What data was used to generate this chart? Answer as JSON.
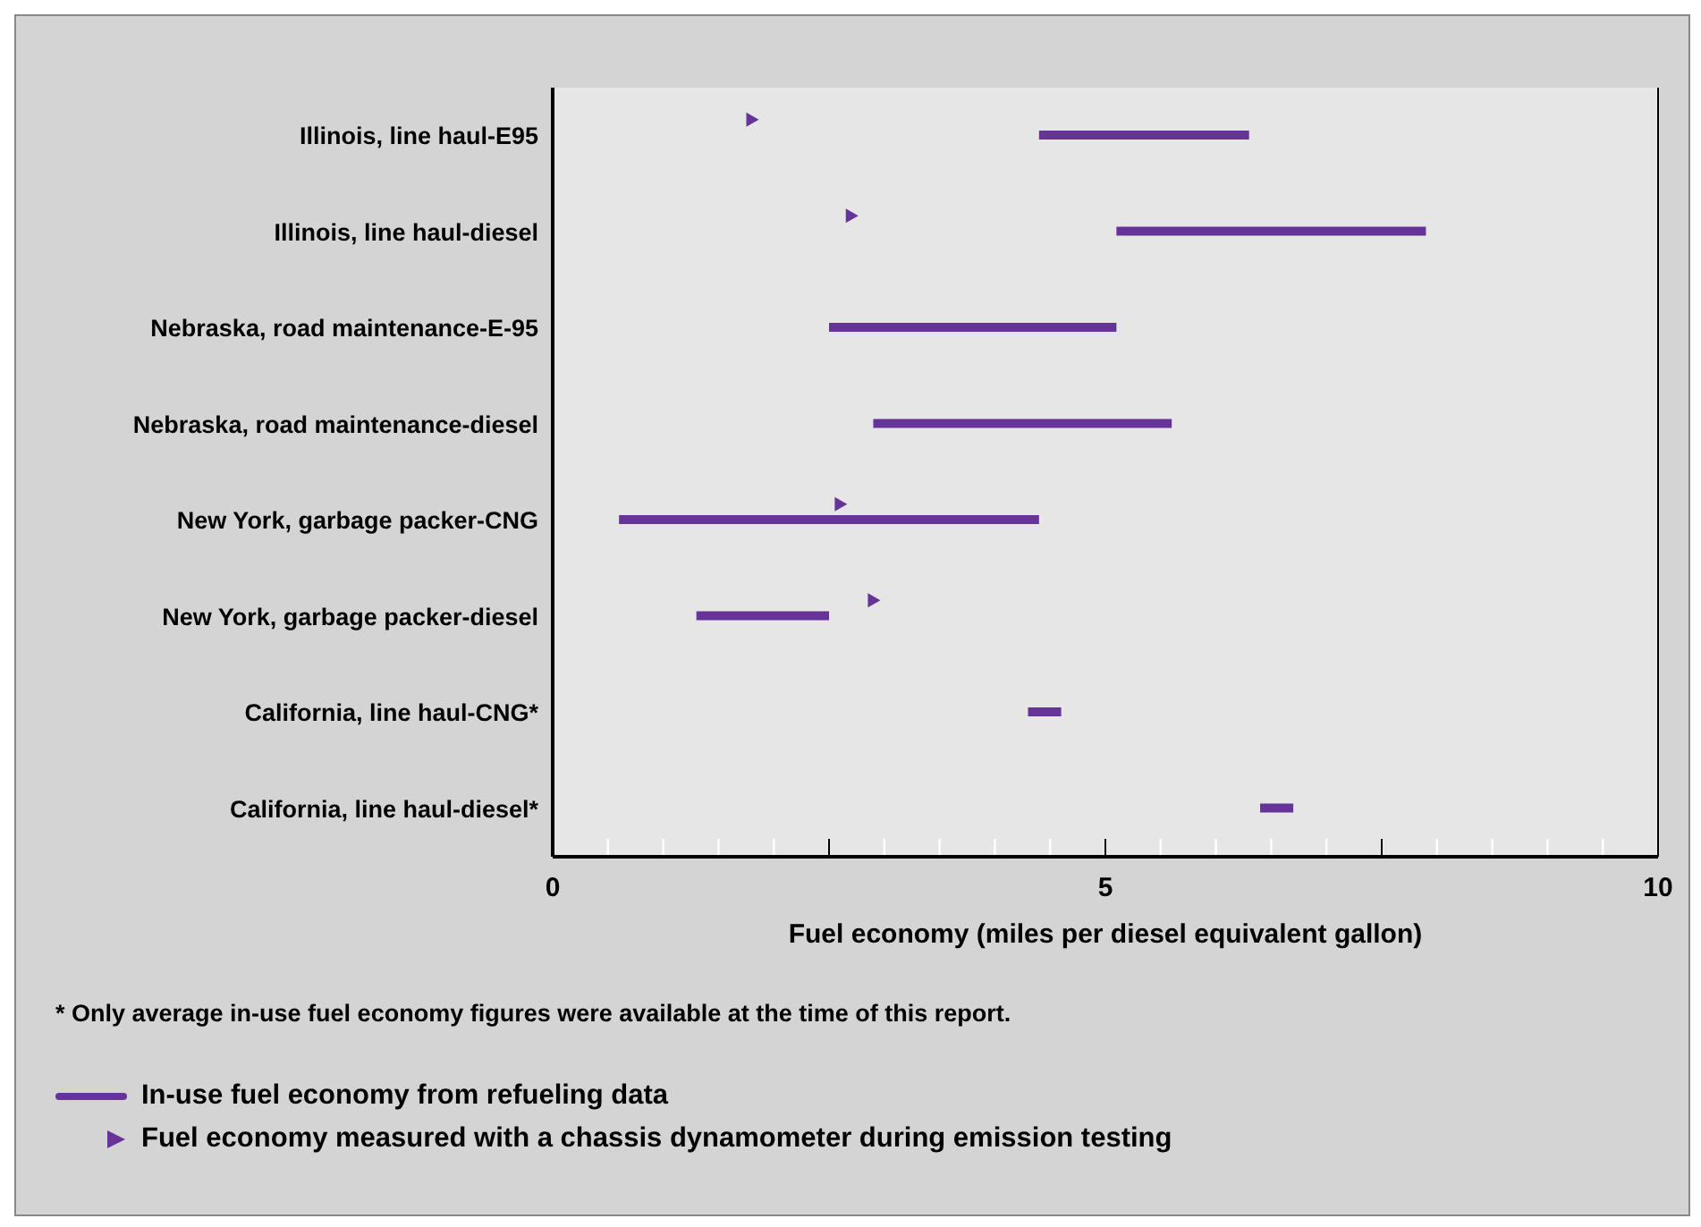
{
  "chart_data": {
    "type": "bar",
    "orientation": "horizontal",
    "categories": [
      "Illinois, line haul-E95",
      "Illinois, line haul-diesel",
      "Nebraska, road maintenance-E-95",
      "Nebraska, road maintenance-diesel",
      "New York, garbage packer-CNG",
      "New York, garbage packer-diesel",
      "California, line haul-CNG*",
      "California, line haul-diesel*"
    ],
    "series": [
      {
        "name": "In-use fuel economy from refueling data",
        "type": "bar",
        "color": "#663399",
        "base": [
          4.4,
          5.1,
          2.5,
          2.9,
          0.6,
          1.3,
          4.3,
          6.4
        ],
        "values": [
          1.9,
          2.8,
          2.6,
          2.7,
          3.8,
          1.2,
          0.3,
          0.3
        ]
      },
      {
        "name": "Fuel economy measured with a chassis dynamometer during emission testing",
        "type": "scatter",
        "color": "#663399",
        "marker": "triangle",
        "values": [
          1.8,
          2.7,
          null,
          null,
          2.6,
          2.9,
          null,
          null
        ]
      }
    ],
    "xlim": [
      0,
      10
    ],
    "xticks": [
      0,
      {
        "value": 0.5,
        "label": null
      },
      {
        "value": 1,
        "label": null
      },
      {
        "value": 1.5,
        "label": null
      },
      {
        "value": 2,
        "label": null
      },
      {
        "value": 2.5,
        "label": null
      },
      {
        "value": 3,
        "label": null
      },
      {
        "value": 3.5,
        "label": null
      },
      {
        "value": 4,
        "label": null
      },
      {
        "value": 4.5,
        "label": null
      },
      5,
      {
        "value": 5.5,
        "label": null
      },
      {
        "value": 6,
        "label": null
      },
      {
        "value": 6.5,
        "label": null
      },
      {
        "value": 7,
        "label": null
      },
      {
        "value": 7.5,
        "label": null
      },
      {
        "value": 8,
        "label": null
      },
      {
        "value": 8.5,
        "label": null
      },
      {
        "value": 9,
        "label": null
      },
      {
        "value": 9.5,
        "label": null
      },
      10
    ],
    "xlabel": "Fuel economy (miles per diesel equivalent gallon)",
    "grid": "x",
    "legend": "bottom",
    "annotations": [
      "* Only average in-use fuel economy figures were available at the time of this report."
    ]
  }
}
